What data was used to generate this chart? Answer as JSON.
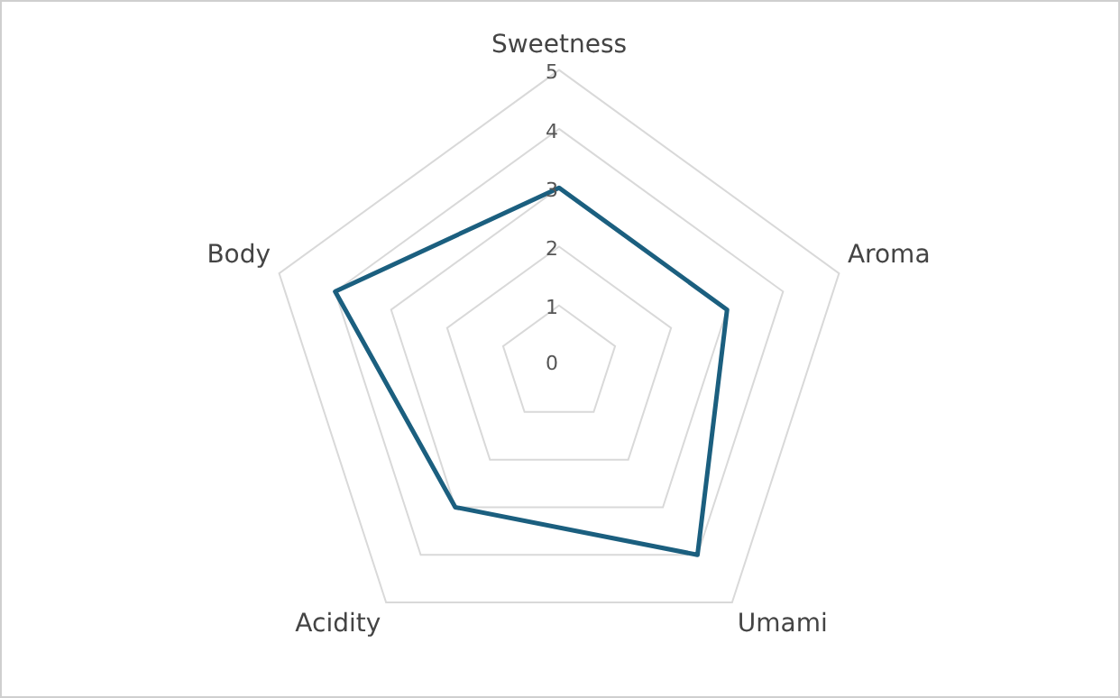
{
  "chart_data": {
    "type": "radar",
    "categories": [
      "Sweetness",
      "Aroma",
      "Umami",
      "Acidity",
      "Body"
    ],
    "series": [
      {
        "color": "#1b5f7f",
        "values": [
          3,
          3,
          4,
          3,
          4
        ]
      }
    ],
    "ylim": [
      0,
      5
    ],
    "yticks": [
      0,
      1,
      2,
      3,
      4,
      5
    ],
    "grid": true,
    "legend": false,
    "marker": "none"
  }
}
